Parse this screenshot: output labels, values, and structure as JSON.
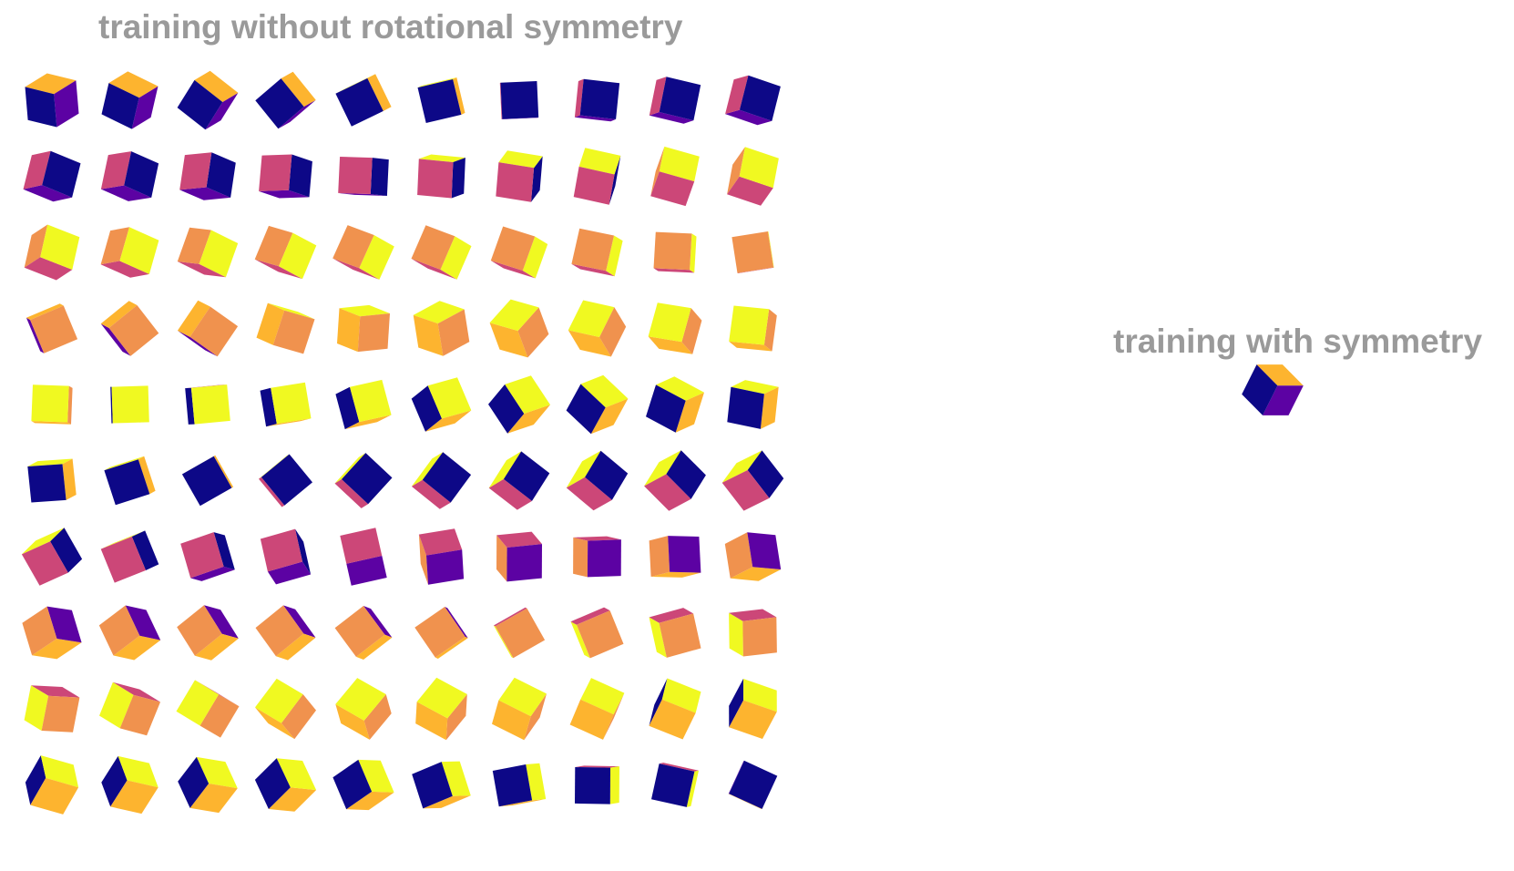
{
  "left_panel": {
    "title": "training without rotational symmetry",
    "rows": 10,
    "cols": 10
  },
  "right_panel": {
    "title": "training with symmetry",
    "count": 1
  },
  "face_colors": {
    "dark_blue": "#0d0887",
    "purple": "#5c02a3",
    "magenta": "#cc4778",
    "orange": "#f0924e",
    "gold": "#fdb42f",
    "yellow": "#f0f921"
  },
  "cubes": [
    {
      "faces": [
        [
          "gold",
          "dark_blue",
          "purple"
        ]
      ]
    }
  ]
}
